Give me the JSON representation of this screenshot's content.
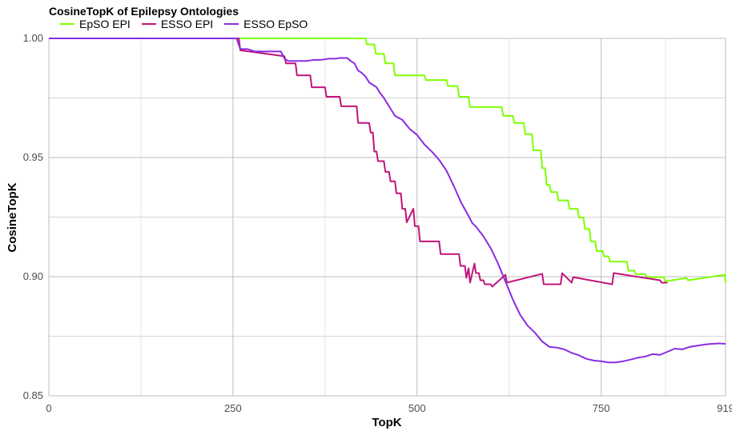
{
  "chart_data": {
    "type": "line",
    "title": "CosineTopK of Epilepsy Ontologies",
    "xlabel": "TopK",
    "ylabel": "CosineTopK",
    "xlim": [
      0,
      919
    ],
    "ylim": [
      0.85,
      1.0
    ],
    "x_ticks": [
      0,
      250,
      500,
      750,
      919
    ],
    "x_tick_labels": [
      "0",
      "250",
      "500",
      "750",
      "919"
    ],
    "y_ticks": [
      0.85,
      0.9,
      0.95,
      1.0
    ],
    "y_tick_labels": [
      "0.85",
      "0.90",
      "0.95",
      "1.00"
    ],
    "grid": true,
    "legend_position": "top-left",
    "series": [
      {
        "name": "EpSO EPI",
        "color": "#7fff00",
        "x": [
          0,
          430,
          432,
          442,
          444,
          455,
          457,
          468,
          470,
          510,
          512,
          540,
          542,
          555,
          557,
          570,
          572,
          615,
          617,
          630,
          632,
          645,
          647,
          656,
          658,
          668,
          670,
          674,
          676,
          680,
          682,
          690,
          692,
          705,
          707,
          718,
          720,
          726,
          728,
          734,
          736,
          742,
          744,
          752,
          754,
          760,
          762,
          785,
          787,
          795,
          797,
          810,
          812,
          835,
          837,
          866,
          868,
          918,
          919
        ],
        "y": [
          1.0,
          1.0,
          0.9975,
          0.9975,
          0.9935,
          0.9935,
          0.9895,
          0.9895,
          0.9845,
          0.9845,
          0.9825,
          0.9825,
          0.98,
          0.98,
          0.9755,
          0.9755,
          0.9712,
          0.9712,
          0.9675,
          0.9675,
          0.9645,
          0.9645,
          0.9598,
          0.9598,
          0.953,
          0.953,
          0.9455,
          0.9455,
          0.9385,
          0.9385,
          0.9355,
          0.9355,
          0.932,
          0.932,
          0.9285,
          0.9285,
          0.9248,
          0.9248,
          0.92,
          0.92,
          0.9148,
          0.9148,
          0.9108,
          0.9108,
          0.9085,
          0.9085,
          0.9063,
          0.9063,
          0.9025,
          0.9025,
          0.901,
          0.901,
          0.8998,
          0.8998,
          0.898,
          0.8995,
          0.8985,
          0.9008,
          0.8975
        ]
      },
      {
        "name": "ESSO EPI",
        "color": "#c0157a",
        "x": [
          0,
          258,
          260,
          320,
          322,
          335,
          337,
          355,
          357,
          375,
          377,
          395,
          397,
          418,
          420,
          435,
          437,
          440,
          442,
          445,
          447,
          455,
          457,
          462,
          464,
          470,
          472,
          478,
          480,
          484,
          486,
          495,
          497,
          502,
          504,
          530,
          532,
          557,
          559,
          565,
          567,
          570,
          572,
          578,
          580,
          584,
          586,
          590,
          592,
          600,
          602,
          620,
          622,
          670,
          672,
          695,
          697,
          710,
          712,
          765,
          767,
          830,
          832,
          840
        ],
        "y": [
          1.0,
          1.0,
          0.995,
          0.9925,
          0.9895,
          0.9895,
          0.9845,
          0.9845,
          0.9795,
          0.9795,
          0.9755,
          0.9755,
          0.9715,
          0.9715,
          0.9645,
          0.9645,
          0.9605,
          0.9605,
          0.9525,
          0.9525,
          0.9485,
          0.9485,
          0.944,
          0.944,
          0.94,
          0.94,
          0.935,
          0.935,
          0.9285,
          0.9285,
          0.9228,
          0.9285,
          0.9212,
          0.9212,
          0.9148,
          0.9148,
          0.9095,
          0.9095,
          0.9045,
          0.9045,
          0.8995,
          0.9035,
          0.8975,
          0.9055,
          0.9015,
          0.9015,
          0.8985,
          0.8985,
          0.8968,
          0.8968,
          0.8958,
          0.9008,
          0.8975,
          0.9012,
          0.8968,
          0.8968,
          0.9015,
          0.8975,
          0.8998,
          0.8968,
          0.9015,
          0.8985,
          0.8975,
          0.8975
        ]
      },
      {
        "name": "ESSO EpSO",
        "color": "#8a2be2",
        "x": [
          0,
          255,
          260,
          270,
          280,
          290,
          300,
          310,
          315,
          320,
          325,
          330,
          340,
          350,
          360,
          370,
          380,
          390,
          395,
          400,
          405,
          410,
          415,
          420,
          425,
          430,
          435,
          440,
          445,
          450,
          455,
          460,
          465,
          470,
          480,
          490,
          500,
          510,
          520,
          530,
          540,
          550,
          560,
          570,
          575,
          580,
          590,
          600,
          610,
          620,
          630,
          640,
          650,
          660,
          670,
          680,
          690,
          700,
          710,
          720,
          730,
          740,
          750,
          760,
          770,
          780,
          790,
          800,
          810,
          820,
          830,
          840,
          850,
          860,
          870,
          880,
          890,
          900,
          910,
          919
        ],
        "y": [
          1.0,
          1.0,
          0.9955,
          0.9955,
          0.9945,
          0.9945,
          0.9945,
          0.9945,
          0.9945,
          0.9915,
          0.9905,
          0.9905,
          0.9905,
          0.9905,
          0.991,
          0.991,
          0.9915,
          0.9915,
          0.9918,
          0.9918,
          0.9918,
          0.9905,
          0.9895,
          0.9865,
          0.9855,
          0.984,
          0.9815,
          0.9805,
          0.9795,
          0.977,
          0.975,
          0.9725,
          0.97,
          0.9675,
          0.9658,
          0.962,
          0.9595,
          0.9555,
          0.9525,
          0.949,
          0.9445,
          0.938,
          0.931,
          0.9255,
          0.9225,
          0.921,
          0.917,
          0.912,
          0.9055,
          0.898,
          0.8905,
          0.884,
          0.8795,
          0.8765,
          0.8728,
          0.8705,
          0.8702,
          0.8695,
          0.868,
          0.867,
          0.8655,
          0.8648,
          0.8645,
          0.864,
          0.864,
          0.8645,
          0.8652,
          0.866,
          0.8665,
          0.8675,
          0.8672,
          0.8685,
          0.8698,
          0.8695,
          0.8705,
          0.871,
          0.8715,
          0.8718,
          0.872,
          0.8718
        ]
      }
    ]
  }
}
